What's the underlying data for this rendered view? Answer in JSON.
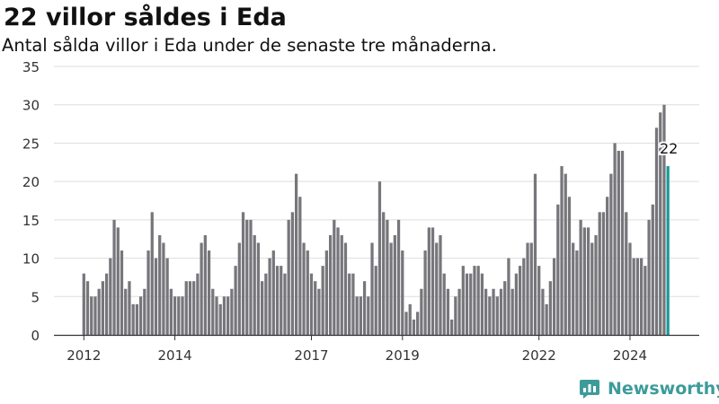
{
  "title": "22 villor såldes i Eda",
  "subtitle": "Antal sålda villor i Eda under de senaste tre månaderna.",
  "brand": {
    "name": "Newsworthy",
    "logo_icon": "newsworthy-logo-icon"
  },
  "colors": {
    "bar": "#76767b",
    "highlight": "#1a9a99",
    "grid": "#dddddd",
    "axis": "#333333"
  },
  "chart_data": {
    "type": "bar",
    "title": "22 villor såldes i Eda",
    "subtitle": "Antal sålda villor i Eda under de senaste tre månaderna.",
    "xlabel": "",
    "ylabel": "",
    "ylim": [
      0,
      35
    ],
    "yticks": [
      0,
      5,
      10,
      15,
      20,
      25,
      30,
      35
    ],
    "grid": true,
    "x_tick_labels": [
      {
        "label": "2012",
        "index": 0
      },
      {
        "label": "2014",
        "index": 24
      },
      {
        "label": "2017",
        "index": 60
      },
      {
        "label": "2019",
        "index": 84
      },
      {
        "label": "2022",
        "index": 120
      },
      {
        "label": "2024",
        "index": 144
      }
    ],
    "values": [
      8,
      7,
      5,
      5,
      6,
      7,
      8,
      10,
      15,
      14,
      11,
      6,
      7,
      4,
      4,
      5,
      6,
      11,
      16,
      10,
      13,
      12,
      10,
      6,
      5,
      5,
      5,
      7,
      7,
      7,
      8,
      12,
      13,
      11,
      6,
      5,
      4,
      5,
      5,
      6,
      9,
      12,
      16,
      15,
      15,
      13,
      12,
      7,
      8,
      10,
      11,
      9,
      9,
      8,
      15,
      16,
      21,
      18,
      12,
      11,
      8,
      7,
      6,
      9,
      11,
      13,
      15,
      14,
      13,
      12,
      8,
      8,
      5,
      5,
      7,
      5,
      12,
      9,
      20,
      16,
      15,
      12,
      13,
      15,
      11,
      3,
      4,
      2,
      3,
      6,
      11,
      14,
      14,
      12,
      13,
      8,
      6,
      2,
      5,
      6,
      9,
      8,
      8,
      9,
      9,
      8,
      6,
      5,
      6,
      5,
      6,
      7,
      10,
      6,
      8,
      9,
      10,
      12,
      12,
      21,
      9,
      6,
      4,
      7,
      10,
      17,
      22,
      21,
      18,
      12,
      11,
      15,
      14,
      14,
      12,
      13,
      16,
      16,
      18,
      21,
      25,
      24,
      24,
      16,
      12,
      10,
      10,
      10,
      9,
      15,
      17,
      27,
      29,
      30,
      22
    ],
    "highlight_index": 154,
    "highlight_label": "22"
  }
}
